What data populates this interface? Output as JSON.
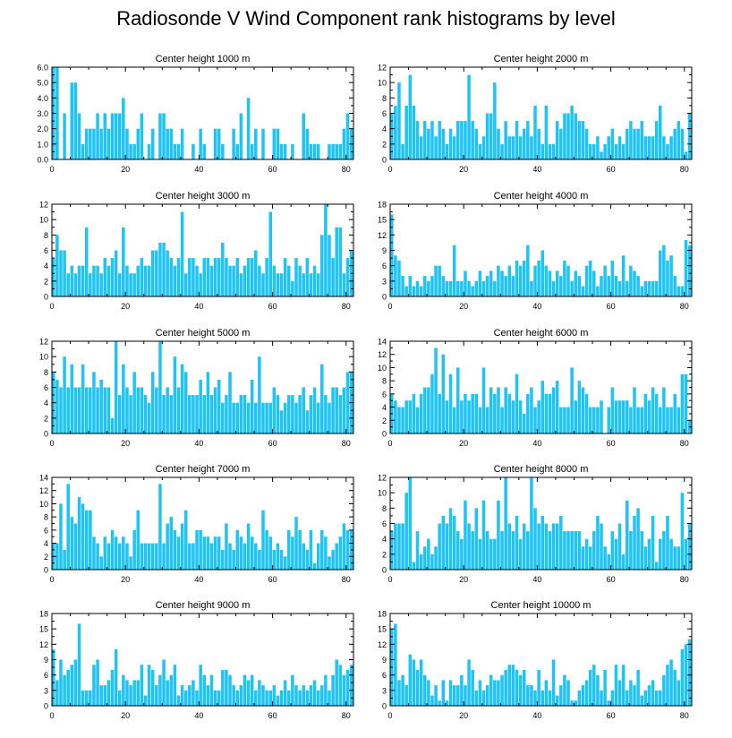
{
  "figure": {
    "title": "Radiosonde V Wind Component rank histograms by level",
    "bar_color": "#1fc3f5",
    "axis_color": "#000000"
  },
  "chart_data": [
    {
      "type": "bar",
      "title": "Center height 1000 m",
      "xlim": [
        0,
        82
      ],
      "ylim": [
        0,
        6
      ],
      "yticks": [
        "0.0",
        "1.0",
        "2.0",
        "3.0",
        "4.0",
        "5.0",
        "6.0"
      ],
      "ytick_values": [
        0,
        1,
        2,
        3,
        4,
        5,
        6
      ],
      "xticks": [
        0,
        20,
        40,
        60,
        80
      ],
      "values": [
        6,
        6,
        0,
        3,
        0,
        5,
        5,
        3,
        1,
        2,
        2,
        2,
        3,
        2,
        3,
        2,
        3,
        3,
        3,
        4,
        2,
        1,
        1,
        2,
        3,
        0,
        1,
        2,
        0,
        3,
        3,
        2,
        2,
        1,
        1,
        2,
        0,
        0,
        1,
        0,
        2,
        1,
        0,
        0,
        2,
        2,
        1,
        0,
        0,
        2,
        1,
        3,
        0,
        4,
        1,
        2,
        0,
        2,
        0,
        0,
        2,
        2,
        1,
        1,
        0,
        1,
        0,
        0,
        3,
        2,
        1,
        1,
        1,
        0,
        0,
        1,
        1,
        1,
        1,
        2,
        3,
        2
      ]
    },
    {
      "type": "bar",
      "title": "Center height 2000 m",
      "xlim": [
        0,
        82
      ],
      "ylim": [
        0,
        12
      ],
      "yticks": [
        "0",
        "2",
        "4",
        "6",
        "8",
        "10",
        "12"
      ],
      "ytick_values": [
        0,
        2,
        4,
        6,
        8,
        10,
        12
      ],
      "xticks": [
        0,
        20,
        40,
        60,
        80
      ],
      "values": [
        6,
        7,
        10,
        2,
        7,
        11,
        7,
        5,
        3,
        5,
        4,
        5,
        3,
        5,
        4,
        2,
        4,
        3,
        5,
        5,
        5,
        11,
        5,
        4,
        2,
        3,
        6,
        6,
        10,
        4,
        2,
        5,
        3,
        3,
        5,
        3,
        4,
        5,
        3,
        7,
        4,
        2,
        7,
        2,
        2,
        5,
        4,
        6,
        6,
        7,
        6,
        5,
        5,
        4,
        2,
        2,
        3,
        1,
        2,
        3,
        4,
        2,
        3,
        2,
        4,
        5,
        4,
        4,
        5,
        3,
        3,
        3,
        5,
        7,
        3,
        2,
        3,
        4,
        5,
        4,
        1,
        6
      ]
    },
    {
      "type": "bar",
      "title": "Center height 3000 m",
      "xlim": [
        0,
        82
      ],
      "ylim": [
        0,
        12
      ],
      "yticks": [
        "0",
        "2",
        "4",
        "6",
        "8",
        "10",
        "12"
      ],
      "ytick_values": [
        0,
        2,
        4,
        6,
        8,
        10,
        12
      ],
      "xticks": [
        0,
        20,
        40,
        60,
        80
      ],
      "values": [
        5,
        8,
        6,
        6,
        3,
        4,
        3,
        4,
        4,
        9,
        3,
        4,
        4,
        3,
        5,
        4,
        5,
        6,
        3,
        9,
        4,
        3,
        3,
        4,
        5,
        4,
        4,
        6,
        6,
        7,
        7,
        6,
        5,
        4,
        5,
        11,
        3,
        5,
        5,
        4,
        3,
        5,
        5,
        4,
        5,
        5,
        7,
        5,
        4,
        4,
        5,
        3,
        4,
        5,
        5,
        6,
        4,
        3,
        5,
        11,
        4,
        3,
        3,
        5,
        4,
        2,
        5,
        4,
        3,
        5,
        3,
        4,
        3,
        8,
        12,
        8,
        5,
        9,
        9,
        3,
        5,
        6
      ]
    },
    {
      "type": "bar",
      "title": "Center height 4000 m",
      "xlim": [
        0,
        82
      ],
      "ylim": [
        0,
        18
      ],
      "yticks": [
        "0",
        "3",
        "6",
        "9",
        "12",
        "15",
        "18"
      ],
      "ytick_values": [
        0,
        3,
        6,
        9,
        12,
        15,
        18
      ],
      "xticks": [
        0,
        20,
        40,
        60,
        80
      ],
      "values": [
        16,
        8,
        7,
        4,
        2,
        4,
        2,
        3,
        2,
        4,
        3,
        4,
        6,
        6,
        4,
        3,
        3,
        10,
        3,
        3,
        5,
        3,
        2,
        3,
        5,
        3,
        4,
        5,
        3,
        6,
        5,
        4,
        6,
        4,
        7,
        6,
        7,
        10,
        3,
        6,
        7,
        9,
        6,
        5,
        3,
        5,
        4,
        7,
        6,
        3,
        5,
        4,
        2,
        6,
        7,
        5,
        2,
        4,
        6,
        4,
        7,
        4,
        3,
        8,
        3,
        6,
        5,
        4,
        2,
        3,
        3,
        3,
        3,
        9,
        10,
        7,
        8,
        4,
        2,
        2,
        11,
        10
      ]
    },
    {
      "type": "bar",
      "title": "Center height 5000 m",
      "xlim": [
        0,
        82
      ],
      "ylim": [
        0,
        12
      ],
      "yticks": [
        "0",
        "2",
        "4",
        "6",
        "8",
        "10",
        "12"
      ],
      "ytick_values": [
        0,
        2,
        4,
        6,
        8,
        10,
        12
      ],
      "xticks": [
        0,
        20,
        40,
        60,
        80
      ],
      "values": [
        8,
        7,
        6,
        10,
        6,
        9,
        6,
        6,
        9,
        6,
        6,
        8,
        6,
        7,
        6,
        6,
        2,
        12,
        5,
        9,
        6,
        5,
        8,
        6,
        6,
        5,
        4,
        8,
        6,
        12,
        5,
        6,
        5,
        10,
        6,
        9,
        8,
        5,
        5,
        5,
        7,
        5,
        8,
        5,
        6,
        7,
        4,
        5,
        8,
        4,
        4,
        5,
        5,
        4,
        7,
        4,
        10,
        4,
        4,
        4,
        6,
        5,
        3,
        4,
        5,
        5,
        4,
        5,
        6,
        3,
        5,
        6,
        4,
        9,
        5,
        4,
        6,
        6,
        5,
        6,
        8,
        8
      ]
    },
    {
      "type": "bar",
      "title": "Center height 6000 m",
      "xlim": [
        0,
        82
      ],
      "ylim": [
        0,
        14
      ],
      "yticks": [
        "0",
        "2",
        "4",
        "6",
        "8",
        "10",
        "12",
        "14"
      ],
      "ytick_values": [
        0,
        2,
        4,
        6,
        8,
        10,
        12,
        14
      ],
      "xticks": [
        0,
        20,
        40,
        60,
        80
      ],
      "values": [
        6,
        5,
        4,
        4,
        5,
        5,
        6,
        4,
        6,
        7,
        7,
        9,
        13,
        6,
        12,
        5,
        9,
        4,
        10,
        5,
        6,
        5,
        6,
        6,
        4,
        10,
        4,
        7,
        6,
        7,
        4,
        7,
        6,
        5,
        9,
        5,
        3,
        6,
        7,
        4,
        5,
        8,
        6,
        6,
        7,
        8,
        4,
        4,
        4,
        10,
        5,
        8,
        7,
        6,
        4,
        4,
        4,
        5,
        0,
        4,
        7,
        5,
        5,
        5,
        5,
        4,
        7,
        4,
        4,
        6,
        5,
        7,
        6,
        4,
        7,
        4,
        4,
        6,
        4,
        9,
        9,
        2
      ]
    },
    {
      "type": "bar",
      "title": "Center height 7000 m",
      "xlim": [
        0,
        82
      ],
      "ylim": [
        0,
        14
      ],
      "yticks": [
        "0",
        "2",
        "4",
        "6",
        "8",
        "10",
        "12",
        "14"
      ],
      "ytick_values": [
        0,
        2,
        4,
        6,
        8,
        10,
        12,
        14
      ],
      "xticks": [
        0,
        20,
        40,
        60,
        80
      ],
      "values": [
        4,
        4,
        10,
        3,
        13,
        8,
        7,
        11,
        10,
        9,
        9,
        5,
        4,
        2,
        5,
        4,
        6,
        5,
        4,
        5,
        4,
        2,
        6,
        9,
        4,
        4,
        4,
        4,
        4,
        13,
        4,
        7,
        8,
        6,
        5,
        7,
        9,
        4,
        4,
        6,
        6,
        5,
        5,
        4,
        5,
        5,
        3,
        7,
        4,
        3,
        6,
        5,
        4,
        7,
        5,
        4,
        3,
        9,
        6,
        5,
        3,
        4,
        3,
        2,
        6,
        5,
        8,
        6,
        4,
        3,
        6,
        1,
        4,
        6,
        5,
        2,
        3,
        4,
        5,
        7,
        6,
        6
      ]
    },
    {
      "type": "bar",
      "title": "Center height 8000 m",
      "xlim": [
        0,
        82
      ],
      "ylim": [
        0,
        12
      ],
      "yticks": [
        "0",
        "2",
        "4",
        "6",
        "8",
        "10",
        "12"
      ],
      "ytick_values": [
        0,
        2,
        4,
        6,
        8,
        10,
        12
      ],
      "xticks": [
        0,
        20,
        40,
        60,
        80
      ],
      "values": [
        5,
        6,
        6,
        6,
        10,
        12,
        1,
        5,
        2,
        3,
        4,
        2,
        3,
        6,
        7,
        6,
        8,
        7,
        5,
        4,
        9,
        6,
        5,
        8,
        4,
        9,
        5,
        4,
        4,
        9,
        5,
        12,
        6,
        5,
        7,
        4,
        6,
        5,
        12,
        8,
        6,
        7,
        6,
        5,
        6,
        6,
        7,
        5,
        5,
        5,
        5,
        5,
        3,
        4,
        3,
        5,
        7,
        6,
        3,
        2,
        5,
        4,
        6,
        2,
        9,
        5,
        7,
        8,
        5,
        3,
        4,
        7,
        1,
        4,
        5,
        7,
        4,
        3,
        3,
        10,
        4,
        6
      ]
    },
    {
      "type": "bar",
      "title": "Center height 9000 m",
      "xlim": [
        0,
        82
      ],
      "ylim": [
        0,
        18
      ],
      "yticks": [
        "0",
        "3",
        "6",
        "9",
        "12",
        "15",
        "18"
      ],
      "ytick_values": [
        0,
        3,
        6,
        9,
        12,
        15,
        18
      ],
      "xticks": [
        0,
        20,
        40,
        60,
        80
      ],
      "values": [
        11,
        5,
        9,
        6,
        7,
        8,
        9,
        16,
        3,
        3,
        3,
        8,
        9,
        4,
        4,
        5,
        7,
        11,
        3,
        6,
        5,
        4,
        5,
        5,
        8,
        2,
        8,
        7,
        4,
        6,
        9,
        5,
        6,
        8,
        2,
        4,
        3,
        4,
        5,
        3,
        8,
        6,
        4,
        6,
        3,
        3,
        7,
        7,
        6,
        4,
        3,
        4,
        6,
        5,
        6,
        3,
        5,
        4,
        3,
        3,
        4,
        2,
        3,
        5,
        3,
        6,
        4,
        3,
        4,
        3,
        4,
        5,
        3,
        4,
        6,
        3,
        6,
        9,
        8,
        6,
        7,
        8
      ]
    },
    {
      "type": "bar",
      "title": "Center height 10000 m",
      "xlim": [
        0,
        82
      ],
      "ylim": [
        0,
        18
      ],
      "yticks": [
        "0",
        "3",
        "6",
        "9",
        "12",
        "15",
        "18"
      ],
      "ytick_values": [
        0,
        3,
        6,
        9,
        12,
        15,
        18
      ],
      "xticks": [
        0,
        20,
        40,
        60,
        80
      ],
      "values": [
        15,
        16,
        5,
        6,
        4,
        10,
        9,
        7,
        9,
        6,
        5,
        2,
        4,
        1,
        5,
        1,
        5,
        4,
        4,
        6,
        4,
        9,
        7,
        3,
        5,
        3,
        4,
        6,
        5,
        5,
        6,
        7,
        8,
        8,
        7,
        6,
        7,
        4,
        4,
        3,
        7,
        3,
        5,
        3,
        9,
        2,
        4,
        6,
        5,
        1,
        1,
        3,
        4,
        5,
        7,
        8,
        6,
        3,
        7,
        1,
        3,
        8,
        5,
        8,
        3,
        5,
        4,
        7,
        2,
        3,
        4,
        5,
        3,
        3,
        6,
        8,
        9,
        7,
        5,
        11,
        12,
        13
      ]
    }
  ]
}
